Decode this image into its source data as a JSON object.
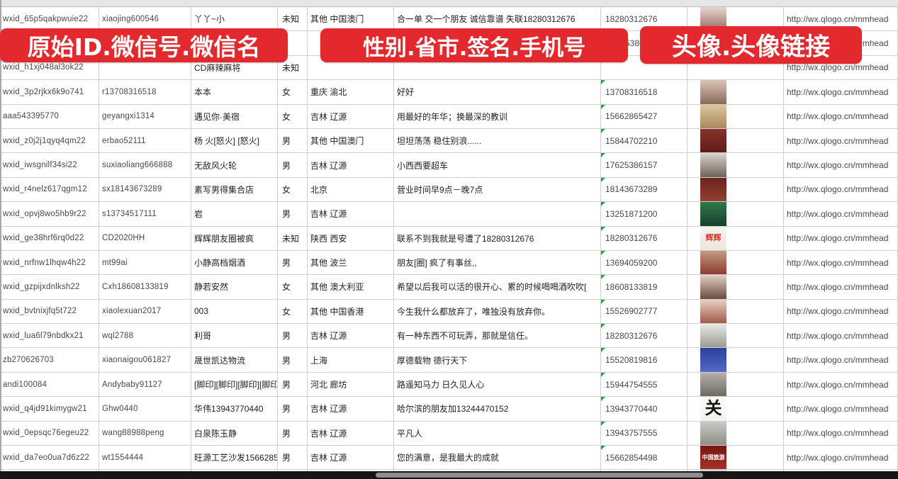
{
  "banners": [
    {
      "label": "原始ID.微信号.微信名"
    },
    {
      "label": "性别.省市.签名.手机号"
    },
    {
      "label": "头像.头像链接"
    }
  ],
  "colors": {
    "banner_red": "#e3292e",
    "banner_text": "#ffffff",
    "grid_line": "#cfcfcf",
    "marker_green": "#2f9e44",
    "scrollbar_track": "#161616",
    "scrollbar_thumb": "#8d8d8d"
  },
  "rows": [
    {
      "wxid": "wxid_65p5qakpwuie22",
      "wechat_id": "xiaojing600546",
      "nickname": "丫丫~小",
      "gender": "未知",
      "region": "其他 中国澳门",
      "signature": "合一单 交一个朋友 诚信靠谱 失联18280312676",
      "phone": "18280312676",
      "phone_indent": 0,
      "marker": false,
      "url": "http://wx.qlogo.cn/mmhead",
      "avatar": {
        "colors": [
          "#e8d5d0",
          "#9b6b62"
        ],
        "text": "",
        "text_color": "",
        "text_size": 10
      }
    },
    {
      "wxid": "",
      "wechat_id": "",
      "nickname": "",
      "gender": "",
      "region": "",
      "signature": "",
      "phone": "5386",
      "phone_indent": 34,
      "marker": false,
      "url": "http://wx.qlogo.cn/mmhead",
      "avatar": {
        "colors": [
          "#8fa3c8",
          "#e8e9f2"
        ],
        "text": "",
        "text_color": "",
        "text_size": 10
      }
    },
    {
      "wxid": "wxid_h1xj048al3ok22",
      "wechat_id": "",
      "nickname": "CD麻辣麻将",
      "gender": "未知",
      "region": "",
      "signature": "",
      "phone": "",
      "phone_indent": 0,
      "marker": false,
      "url": "http://wx.qlogo.cn/mmhead",
      "avatar": null
    },
    {
      "wxid": "wxid_3p2rjkx6k9o741",
      "wechat_id": "r13708316518",
      "nickname": "本本",
      "gender": "女",
      "region": "重庆 渝北",
      "signature": "好好",
      "phone": "13708316518",
      "phone_indent": 0,
      "marker": true,
      "url": "http://wx.qlogo.cn/mmhead",
      "avatar": {
        "colors": [
          "#d8c4b8",
          "#8a6a58"
        ],
        "text": "",
        "text_color": "",
        "text_size": 10
      }
    },
    {
      "wxid": "aaa543395770",
      "wechat_id": "geyangxi1314",
      "nickname": "遇见你·美宿",
      "gender": "女",
      "region": "吉林 辽源",
      "signature": "用最好的年华；换最深的教训",
      "phone": "15662865427",
      "phone_indent": 0,
      "marker": true,
      "url": "http://wx.qlogo.cn/mmhead",
      "avatar": {
        "colors": [
          "#dcc69e",
          "#a9875c"
        ],
        "text": "",
        "text_color": "",
        "text_size": 10
      }
    },
    {
      "wxid": "wxid_z0j2j1qyq4qm22",
      "wechat_id": "erbao52111",
      "nickname": "杨 火[怒火] [怒火]",
      "gender": "男",
      "region": "其他 中国澳门",
      "signature": "坦坦荡荡 稳住别浪......",
      "phone": "15844702210",
      "phone_indent": 0,
      "marker": true,
      "url": "http://wx.qlogo.cn/mmhead",
      "avatar": {
        "colors": [
          "#8a3328",
          "#5e1d18"
        ],
        "text": "",
        "text_color": "",
        "text_size": 10
      }
    },
    {
      "wxid": "wxid_iwsgnilf34si22",
      "wechat_id": "suxiaoliang666888",
      "nickname": "无敌风火轮",
      "gender": "男",
      "region": "吉林 辽源",
      "signature": "小西西要超车",
      "phone": "17625386157",
      "phone_indent": 0,
      "marker": true,
      "url": "http://wx.qlogo.cn/mmhead",
      "avatar": {
        "colors": [
          "#d9d4cc",
          "#6f6258"
        ],
        "text": "",
        "text_color": "",
        "text_size": 10
      }
    },
    {
      "wxid": "wxid_r4nelz617qgm12",
      "wechat_id": "sx18143673289",
      "nickname": "素写男得集合店",
      "gender": "女",
      "region": "北京",
      "signature": "营业时间早9点－晚7点",
      "phone": "18143673289",
      "phone_indent": 0,
      "marker": true,
      "url": "http://wx.qlogo.cn/mmhead",
      "avatar": {
        "colors": [
          "#6b241d",
          "#93402f"
        ],
        "text": "",
        "text_color": "",
        "text_size": 10
      }
    },
    {
      "wxid": "wxid_opvj8wo5hb9r22",
      "wechat_id": "s13734517111",
      "nickname": "岩",
      "gender": "男",
      "region": "吉林 辽源",
      "signature": "",
      "phone": "13251871200",
      "phone_indent": 0,
      "marker": true,
      "url": "http://wx.qlogo.cn/mmhead",
      "avatar": {
        "colors": [
          "#2f7a4a",
          "#16402a"
        ],
        "text": "",
        "text_color": "",
        "text_size": 10
      }
    },
    {
      "wxid": "wxid_ge38hrf6rq0d22",
      "wechat_id": "CD2020HH",
      "nickname": "辉辉朋友圈被疯",
      "gender": "未知",
      "region": "陕西 西安",
      "signature": "联系不到我就是号遭了18280312676",
      "phone": "18280312676",
      "phone_indent": 0,
      "marker": true,
      "url": "http://wx.qlogo.cn/mmhead",
      "avatar": {
        "colors": [
          "#f7f3ee",
          "#efe6dc"
        ],
        "text": "辉辉",
        "text_color": "#d43a2a",
        "text_size": 11
      }
    },
    {
      "wxid": "wxid_nrfnw1lhqw4h22",
      "wechat_id": "mt99ai",
      "nickname": "小静高档烟酒",
      "gender": "男",
      "region": "其他 波兰",
      "signature": "朋友[圈] 疯了有事丝,,",
      "phone": "13694059200",
      "phone_indent": 0,
      "marker": true,
      "url": "http://wx.qlogo.cn/mmhead",
      "avatar": {
        "colors": [
          "#c49a82",
          "#8c3d30"
        ],
        "text": "",
        "text_color": "",
        "text_size": 10
      }
    },
    {
      "wxid": "wxid_gzpijxdnlksh22",
      "wechat_id": "Cxh18608133819",
      "nickname": "静若安然",
      "gender": "女",
      "region": "其他 澳大利亚",
      "signature": "希望以后我可以活的很开心、累的时候喝喝酒吹吹[",
      "phone": "18608133819",
      "phone_indent": 0,
      "marker": true,
      "url": "http://wx.qlogo.cn/mmhead",
      "avatar": {
        "colors": [
          "#e3d0c4",
          "#6b4a3c"
        ],
        "text": "",
        "text_color": "",
        "text_size": 10
      }
    },
    {
      "wxid": "wxid_bvtnixjfq5t722",
      "wechat_id": "xiaolexuan2017",
      "nickname": "003",
      "gender": "女",
      "region": "其他 中国香港",
      "signature": "今生我什么都放弃了，唯独没有放弃你。",
      "phone": "15526902777",
      "phone_indent": 0,
      "marker": true,
      "url": "http://wx.qlogo.cn/mmhead",
      "avatar": {
        "colors": [
          "#e8cfc4",
          "#a05a48"
        ],
        "text": "",
        "text_color": "",
        "text_size": 10
      }
    },
    {
      "wxid": "wxid_lua6l79nbdkx21",
      "wechat_id": "wql2788",
      "nickname": "利哥",
      "gender": "男",
      "region": "吉林 辽源",
      "signature": "有一种东西不可玩弄，那就是信任。",
      "phone": "18280312676",
      "phone_indent": 0,
      "marker": true,
      "url": "http://wx.qlogo.cn/mmhead",
      "avatar": {
        "colors": [
          "#e9e9e7",
          "#9a9a94"
        ],
        "text": "",
        "text_color": "",
        "text_size": 10
      }
    },
    {
      "wxid": "zb270626703",
      "wechat_id": "xiaonaigou061827",
      "nickname": "晟世凯达物流",
      "gender": "男",
      "region": "上海",
      "signature": "厚德载物 德行天下",
      "phone": "15520819816",
      "phone_indent": 0,
      "marker": true,
      "url": "http://wx.qlogo.cn/mmhead",
      "avatar": {
        "colors": [
          "#2b3f9e",
          "#5468c4"
        ],
        "text": "",
        "text_color": "",
        "text_size": 10
      }
    },
    {
      "wxid": "andi100084",
      "wechat_id": "Andybaby91127",
      "nickname": "[脚印][脚印][脚印][脚印]",
      "gender": "男",
      "region": "河北 廊坊",
      "signature": "路遥知马力 日久见人心",
      "phone": "15944754555",
      "phone_indent": 0,
      "marker": true,
      "url": "http://wx.qlogo.cn/mmhead",
      "avatar": {
        "colors": [
          "#b5b0a8",
          "#6e6a62"
        ],
        "text": "",
        "text_color": "",
        "text_size": 10
      }
    },
    {
      "wxid": "wxid_q4jd91kimygw21",
      "wechat_id": "Ghw0440",
      "nickname": "华伟13943770440",
      "gender": "男",
      "region": "吉林 辽源",
      "signature": "哈尔滨的朋友加13244470152",
      "phone": "13943770440",
      "phone_indent": 0,
      "marker": true,
      "url": "http://wx.qlogo.cn/mmhead",
      "avatar": {
        "colors": [
          "#fcfcfa",
          "#f2f2ee"
        ],
        "text": "关",
        "text_color": "#141414",
        "text_size": 24
      }
    },
    {
      "wxid": "wxid_0epsqc76egeu22",
      "wechat_id": "wang88988peng",
      "nickname": "白泉陈玉静",
      "gender": "男",
      "region": "吉林 辽源",
      "signature": "平凡人",
      "phone": "13943757555",
      "phone_indent": 0,
      "marker": true,
      "url": "http://wx.qlogo.cn/mmhead",
      "avatar": {
        "colors": [
          "#c9c9c5",
          "#8f8f88"
        ],
        "text": "",
        "text_color": "",
        "text_size": 10
      }
    },
    {
      "wxid": "wxid_da7eo0ua7d6z22",
      "wechat_id": "wt1554444",
      "nickname": "旺源工艺沙发15662854",
      "gender": "男",
      "region": "吉林 辽源",
      "signature": "您的满意，是我最大的成就",
      "phone": "15662854498",
      "phone_indent": 0,
      "marker": true,
      "url": "http://wx.qlogo.cn/mmhead",
      "avatar": {
        "colors": [
          "#7a1512",
          "#a33328"
        ],
        "text": "中国旅游",
        "text_color": "#ffffff",
        "text_size": 8
      }
    },
    {
      "wxid": "",
      "wechat_id": "",
      "nickname": "",
      "gender": "",
      "region": "",
      "signature": "",
      "phone": "",
      "phone_indent": 0,
      "marker": false,
      "url": "",
      "avatar": {
        "colors": [
          "#cfd8dd",
          "#8fa3b0"
        ],
        "text": "",
        "text_color": "",
        "text_size": 10
      }
    }
  ]
}
